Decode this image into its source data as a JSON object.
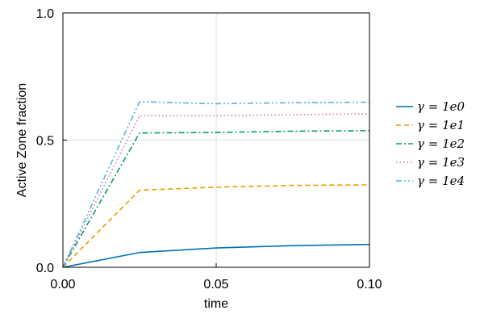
{
  "chart_data": {
    "type": "line",
    "xlabel": "time",
    "ylabel": "Active Zone fraction",
    "xlim": [
      0.0,
      0.1
    ],
    "ylim": [
      0.0,
      1.0
    ],
    "xticks": [
      0.0,
      0.05,
      0.1
    ],
    "xtick_labels": [
      "0.00",
      "0.05",
      "0.10"
    ],
    "yticks": [
      0.0,
      0.5,
      1.0
    ],
    "ytick_labels": [
      "0.0",
      "0.5",
      "1.0"
    ],
    "grid": true,
    "legend_position": "right",
    "x": [
      0.0,
      0.025,
      0.05,
      0.075,
      0.1
    ],
    "series": [
      {
        "name": "γ = 1e0",
        "values": [
          0.0,
          0.058,
          0.076,
          0.085,
          0.09
        ],
        "color": "#0072b2",
        "dash": "solid"
      },
      {
        "name": "γ = 1e1",
        "values": [
          0.0,
          0.303,
          0.315,
          0.322,
          0.324
        ],
        "color": "#e69f00",
        "dash": "dashed"
      },
      {
        "name": "γ = 1e2",
        "values": [
          0.0,
          0.528,
          0.53,
          0.535,
          0.537
        ],
        "color": "#009e73",
        "dash": "dashdot"
      },
      {
        "name": "γ = 1e3",
        "values": [
          0.0,
          0.596,
          0.596,
          0.6,
          0.603
        ],
        "color": "#cc79a7",
        "dash": "dotted"
      },
      {
        "name": "γ = 1e4",
        "values": [
          0.0,
          0.651,
          0.643,
          0.647,
          0.649
        ],
        "color": "#56b4e9",
        "dash": "dashdotdot"
      }
    ]
  }
}
